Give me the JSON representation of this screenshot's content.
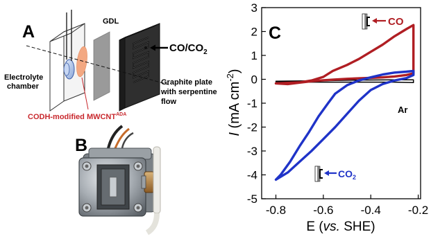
{
  "panels": {
    "a": {
      "letter": "A",
      "gdl_label": "GDL",
      "gas_label": "CO/CO",
      "gas_label_sub": "2",
      "electrolyte_label_1": "Electrolyte",
      "electrolyte_label_2": "chamber",
      "graphite_label_1": "Graphite plate",
      "graphite_label_2": "with serpentine",
      "graphite_label_3": "flow",
      "codh_label": "CODH-modified MWCNT",
      "codh_label_sup": "ADA",
      "codh_color": "#c8282d"
    },
    "b": {
      "letter": "B"
    },
    "c": {
      "letter": "C",
      "label_co": "CO",
      "label_co2": "CO",
      "label_co2_sub": "2",
      "label_ar": "Ar"
    }
  },
  "colors": {
    "co": "#b01e23",
    "co2": "#1f33c8",
    "ar": "#000000",
    "gdl": "#8f8f8f",
    "graphite": "#3a3a3a"
  },
  "chart_data": {
    "type": "line",
    "xlabel": "E (vs. SHE)",
    "xlabel_parts": [
      "E (",
      "vs.",
      " SHE)"
    ],
    "ylabel_parts": [
      "I",
      " (mA cm",
      "-2",
      ")"
    ],
    "xlim": [
      -0.86,
      -0.19
    ],
    "ylim": [
      -5,
      3
    ],
    "x_ticks": [
      -0.8,
      -0.6,
      -0.4,
      -0.2
    ],
    "x_tick_labels": [
      "-0.8",
      "-0.6",
      "-0.4",
      "-0.2"
    ],
    "y_ticks": [
      -5,
      -4,
      -3,
      -2,
      -1,
      0,
      1,
      2,
      3
    ],
    "y_tick_labels": [
      "-5",
      "-4",
      "-3",
      "-2",
      "-1",
      "0",
      "1",
      "2",
      "3"
    ],
    "grid": false,
    "series": [
      {
        "name": "CO",
        "x": [
          -0.8,
          -0.75,
          -0.7,
          -0.65,
          -0.6,
          -0.56,
          -0.5,
          -0.45,
          -0.4,
          -0.35,
          -0.3,
          -0.25,
          -0.22,
          -0.22,
          -0.25,
          -0.3,
          -0.35,
          -0.4,
          -0.45,
          -0.5,
          -0.55,
          -0.6,
          -0.65,
          -0.7,
          -0.75,
          -0.8
        ],
        "y": [
          -0.17,
          -0.15,
          -0.13,
          -0.05,
          0.1,
          0.35,
          0.6,
          0.85,
          1.15,
          1.45,
          1.8,
          2.1,
          2.27,
          0.25,
          0.18,
          0.12,
          0.08,
          0.06,
          0.04,
          0.02,
          -0.01,
          -0.04,
          -0.08,
          -0.14,
          -0.2,
          -0.17
        ]
      },
      {
        "name": "CO",
        "x": [
          -0.8,
          -0.78,
          -0.74,
          -0.7,
          -0.66,
          -0.62,
          -0.58,
          -0.55,
          -0.5,
          -0.45,
          -0.4,
          -0.35,
          -0.3,
          -0.25,
          -0.22,
          -0.22,
          -0.25,
          -0.3,
          -0.35,
          -0.4,
          -0.45,
          -0.5,
          -0.55,
          -0.6,
          -0.65,
          -0.7,
          -0.75,
          -0.8
        ],
        "y": [
          -4.2,
          -4.0,
          -3.45,
          -2.8,
          -2.2,
          -1.55,
          -1.0,
          -0.6,
          -0.25,
          -0.05,
          0.08,
          0.2,
          0.28,
          0.32,
          0.35,
          0.18,
          0.05,
          -0.05,
          -0.2,
          -0.45,
          -0.9,
          -1.45,
          -2.0,
          -2.5,
          -3.0,
          -3.45,
          -3.9,
          -4.2
        ]
      },
      {
        "name": "Ar",
        "x": [
          -0.8,
          -0.7,
          -0.6,
          -0.5,
          -0.4,
          -0.3,
          -0.22,
          -0.22,
          -0.3,
          -0.4,
          -0.5,
          -0.6,
          -0.7,
          -0.8
        ],
        "y": [
          -0.08,
          -0.07,
          -0.06,
          -0.04,
          -0.03,
          -0.02,
          -0.02,
          -0.14,
          -0.12,
          -0.12,
          -0.12,
          -0.12,
          -0.12,
          -0.1
        ]
      }
    ]
  }
}
